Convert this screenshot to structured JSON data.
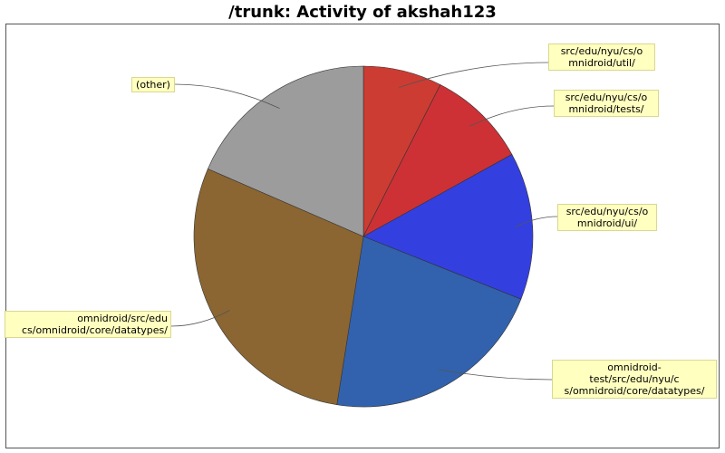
{
  "chart_data": {
    "type": "pie",
    "title": "/trunk: Activity of akshah123",
    "legend": "none",
    "slices": [
      {
        "label": "src/edu/nyu/cs/omnidroid/util/",
        "label_lines": [
          "src/edu/nyu/cs/o",
          "mnidroid/util/"
        ],
        "value": 7.5,
        "color": "#cc3c33"
      },
      {
        "label": "src/edu/nyu/cs/omnidroid/tests/",
        "label_lines": [
          "src/edu/nyu/cs/o",
          "mnidroid/tests/"
        ],
        "value": 9.5,
        "color": "#cd3135"
      },
      {
        "label": "src/edu/nyu/cs/omnidroid/ui/",
        "label_lines": [
          "src/edu/nyu/cs/o",
          "mnidroid/ui/"
        ],
        "value": 14.0,
        "color": "#343fe0"
      },
      {
        "label": "omnidroid-test/src/edu/nyu/cs/omnidroid/core/datatypes/",
        "label_lines": [
          "omnidroid-",
          "test/src/edu/nyu/c",
          "s/omnidroid/core/datatypes/"
        ],
        "value": 21.5,
        "color": "#3262ad"
      },
      {
        "label": "omnidroid/src/edu/nyu/cs/omnidroid/core/datatypes/",
        "label_lines": [
          "omnidroid/src/edu",
          "cs/omnidroid/core/datatypes/"
        ],
        "value": 29.0,
        "color": "#8b6632"
      },
      {
        "label": "(other)",
        "label_lines": [
          "(other)"
        ],
        "value": 18.5,
        "color": "#9c9c9c"
      }
    ]
  }
}
